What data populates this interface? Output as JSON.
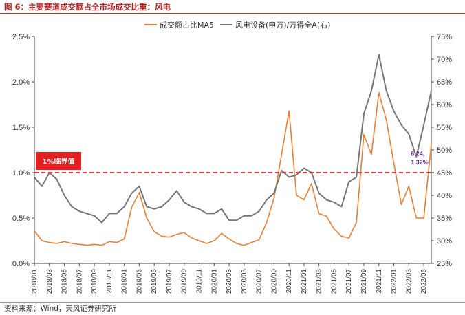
{
  "figure": {
    "title": "图 6：主要赛道成交额占全市场成交比重：风电",
    "source": "资料来源：Wind，天风证券研究所"
  },
  "chart_data": {
    "type": "line",
    "x_ticks": [
      "2018/01",
      "2018/03",
      "2018/05",
      "2018/07",
      "2018/09",
      "2018/11",
      "2019/01",
      "2019/03",
      "2019/05",
      "2019/07",
      "2019/09",
      "2019/11",
      "2020/01",
      "2020/03",
      "2020/05",
      "2020/07",
      "2020/09",
      "2020/11",
      "2021/01",
      "2021/03",
      "2021/05",
      "2021/07",
      "2021/09",
      "2021/11",
      "2022/01",
      "2022/03",
      "2022/05"
    ],
    "x_range": [
      "2018-01",
      "2022-06"
    ],
    "left_axis": {
      "ylim": [
        0,
        2.5
      ],
      "ticks": [
        "0.0%",
        "0.5%",
        "1.0%",
        "1.5%",
        "2.0%",
        "2.5%"
      ]
    },
    "right_axis": {
      "ylim": [
        25,
        75
      ],
      "ticks": [
        "25%",
        "30%",
        "35%",
        "40%",
        "45%",
        "50%",
        "55%",
        "60%",
        "65%",
        "70%",
        "75%"
      ]
    },
    "legend_position": "top-center",
    "series": [
      {
        "name": "成交额占比MA5",
        "axis": "left",
        "color": "#ed7d31",
        "unit": "%",
        "points": [
          [
            "2018-01",
            0.36
          ],
          [
            "2018-02",
            0.25
          ],
          [
            "2018-03",
            0.23
          ],
          [
            "2018-04",
            0.22
          ],
          [
            "2018-05",
            0.24
          ],
          [
            "2018-06",
            0.22
          ],
          [
            "2018-07",
            0.21
          ],
          [
            "2018-08",
            0.2
          ],
          [
            "2018-09",
            0.21
          ],
          [
            "2018-10",
            0.2
          ],
          [
            "2018-11",
            0.24
          ],
          [
            "2018-12",
            0.23
          ],
          [
            "2019-01",
            0.27
          ],
          [
            "2019-02",
            0.62
          ],
          [
            "2019-03",
            0.78
          ],
          [
            "2019-04",
            0.5
          ],
          [
            "2019-05",
            0.35
          ],
          [
            "2019-06",
            0.3
          ],
          [
            "2019-07",
            0.29
          ],
          [
            "2019-08",
            0.32
          ],
          [
            "2019-09",
            0.34
          ],
          [
            "2019-10",
            0.28
          ],
          [
            "2019-11",
            0.25
          ],
          [
            "2019-12",
            0.22
          ],
          [
            "2020-01",
            0.25
          ],
          [
            "2020-02",
            0.33
          ],
          [
            "2020-03",
            0.27
          ],
          [
            "2020-04",
            0.22
          ],
          [
            "2020-05",
            0.2
          ],
          [
            "2020-06",
            0.23
          ],
          [
            "2020-07",
            0.26
          ],
          [
            "2020-08",
            0.45
          ],
          [
            "2020-09",
            0.72
          ],
          [
            "2020-10",
            1.2
          ],
          [
            "2020-11",
            1.68
          ],
          [
            "2020-12",
            0.75
          ],
          [
            "2021-01",
            0.7
          ],
          [
            "2021-02",
            0.88
          ],
          [
            "2021-03",
            0.55
          ],
          [
            "2021-04",
            0.52
          ],
          [
            "2021-05",
            0.38
          ],
          [
            "2021-06",
            0.3
          ],
          [
            "2021-07",
            0.28
          ],
          [
            "2021-08",
            0.45
          ],
          [
            "2021-09",
            1.42
          ],
          [
            "2021-10",
            1.2
          ],
          [
            "2021-11",
            1.88
          ],
          [
            "2021-12",
            1.58
          ],
          [
            "2022-01",
            1.1
          ],
          [
            "2022-02",
            0.65
          ],
          [
            "2022-03",
            0.85
          ],
          [
            "2022-04",
            0.5
          ],
          [
            "2022-05",
            0.5
          ],
          [
            "2022-06",
            1.32
          ]
        ]
      },
      {
        "name": "风电设备(申万)/万得全A(右)",
        "axis": "right",
        "color": "#767676",
        "unit": "%",
        "points": [
          [
            "2018-01",
            44.0
          ],
          [
            "2018-02",
            42.0
          ],
          [
            "2018-03",
            45.0
          ],
          [
            "2018-04",
            43.5
          ],
          [
            "2018-05",
            40.0
          ],
          [
            "2018-06",
            37.5
          ],
          [
            "2018-07",
            36.5
          ],
          [
            "2018-08",
            36.0
          ],
          [
            "2018-09",
            35.5
          ],
          [
            "2018-10",
            34.0
          ],
          [
            "2018-11",
            36.0
          ],
          [
            "2018-12",
            36.0
          ],
          [
            "2019-01",
            37.5
          ],
          [
            "2019-02",
            40.5
          ],
          [
            "2019-03",
            42.0
          ],
          [
            "2019-04",
            37.5
          ],
          [
            "2019-05",
            37.0
          ],
          [
            "2019-06",
            37.5
          ],
          [
            "2019-07",
            39.0
          ],
          [
            "2019-08",
            41.0
          ],
          [
            "2019-09",
            38.5
          ],
          [
            "2019-10",
            37.5
          ],
          [
            "2019-11",
            37.0
          ],
          [
            "2019-12",
            36.0
          ],
          [
            "2020-01",
            36.0
          ],
          [
            "2020-02",
            37.0
          ],
          [
            "2020-03",
            34.5
          ],
          [
            "2020-04",
            34.5
          ],
          [
            "2020-05",
            35.5
          ],
          [
            "2020-06",
            35.5
          ],
          [
            "2020-07",
            36.5
          ],
          [
            "2020-08",
            39.0
          ],
          [
            "2020-09",
            40.5
          ],
          [
            "2020-10",
            45.5
          ],
          [
            "2020-11",
            44.0
          ],
          [
            "2020-12",
            44.5
          ],
          [
            "2021-01",
            46.0
          ],
          [
            "2021-02",
            45.0
          ],
          [
            "2021-03",
            40.5
          ],
          [
            "2021-04",
            39.0
          ],
          [
            "2021-05",
            38.5
          ],
          [
            "2021-06",
            37.5
          ],
          [
            "2021-07",
            43.0
          ],
          [
            "2021-08",
            44.0
          ],
          [
            "2021-09",
            58.0
          ],
          [
            "2021-10",
            63.0
          ],
          [
            "2021-11",
            71.0
          ],
          [
            "2021-12",
            63.0
          ],
          [
            "2022-01",
            58.5
          ],
          [
            "2022-02",
            55.5
          ],
          [
            "2022-03",
            53.5
          ],
          [
            "2022-04",
            48.5
          ],
          [
            "2022-05",
            55.5
          ],
          [
            "2022-06",
            63.0
          ]
        ]
      }
    ],
    "threshold": {
      "value": 1.0,
      "axis": "left",
      "label": "1%临界值",
      "color": "#e02020"
    },
    "annotations": [
      {
        "text": "6.24,",
        "x": "2022-04",
        "y_right": 48.7
      },
      {
        "text": "1.32%",
        "x": "2022-04",
        "y_right": 46.8
      }
    ]
  }
}
